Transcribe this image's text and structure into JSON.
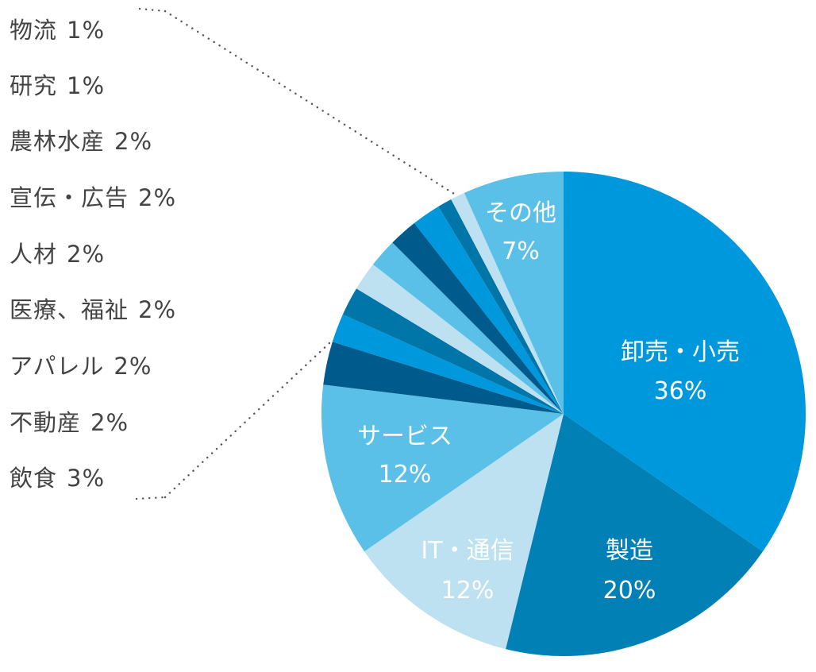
{
  "chart_data": {
    "type": "pie",
    "slices": [
      {
        "label": "卸売・小売",
        "value": 36,
        "display": "36%",
        "color": "#0098dc"
      },
      {
        "label": "製造",
        "value": 20,
        "display": "20%",
        "color": "#0080b5"
      },
      {
        "label": "IT・通信",
        "value": 12,
        "display": "12%",
        "color": "#bde1f1"
      },
      {
        "label": "サービス",
        "value": 12,
        "display": "12%",
        "color": "#5bc0e8"
      },
      {
        "label": "飲食",
        "value": 3,
        "display": "3%",
        "color": "#005a8c"
      },
      {
        "label": "不動産",
        "value": 2,
        "display": "2%",
        "color": "#0098dc"
      },
      {
        "label": "アパレル",
        "value": 2,
        "display": "2%",
        "color": "#0076a8"
      },
      {
        "label": "医療、福祉",
        "value": 2,
        "display": "2%",
        "color": "#bde1f1"
      },
      {
        "label": "人材",
        "value": 2,
        "display": "2%",
        "color": "#5bc0e8"
      },
      {
        "label": "宣伝・広告",
        "value": 2,
        "display": "2%",
        "color": "#005a8c"
      },
      {
        "label": "農林水産",
        "value": 2,
        "display": "2%",
        "color": "#0098dc"
      },
      {
        "label": "研究",
        "value": 1,
        "display": "1%",
        "color": "#0076a8"
      },
      {
        "label": "物流",
        "value": 1,
        "display": "1%",
        "color": "#bde1f1"
      },
      {
        "label": "その他",
        "value": 7,
        "display": "7%",
        "color": "#5bc0e8"
      }
    ],
    "inside_labels": [
      {
        "name": "卸売・小売",
        "pct": "36%"
      },
      {
        "name": "製造",
        "pct": "20%"
      },
      {
        "name": "IT・通信",
        "pct": "12%"
      },
      {
        "name": "サービス",
        "pct": "12%"
      },
      {
        "name": "その他",
        "pct": "7%"
      }
    ],
    "outside_labels": [
      {
        "name": "物流",
        "pct": "1%"
      },
      {
        "name": "研究",
        "pct": "1%"
      },
      {
        "name": "農林水産",
        "pct": "2%"
      },
      {
        "name": "宣伝・広告",
        "pct": "2%"
      },
      {
        "name": "人材",
        "pct": "2%"
      },
      {
        "name": "医療、福祉",
        "pct": "2%"
      },
      {
        "name": "アパレル",
        "pct": "2%"
      },
      {
        "name": "不動産",
        "pct": "2%"
      },
      {
        "name": "飲食",
        "pct": "3%"
      }
    ]
  }
}
